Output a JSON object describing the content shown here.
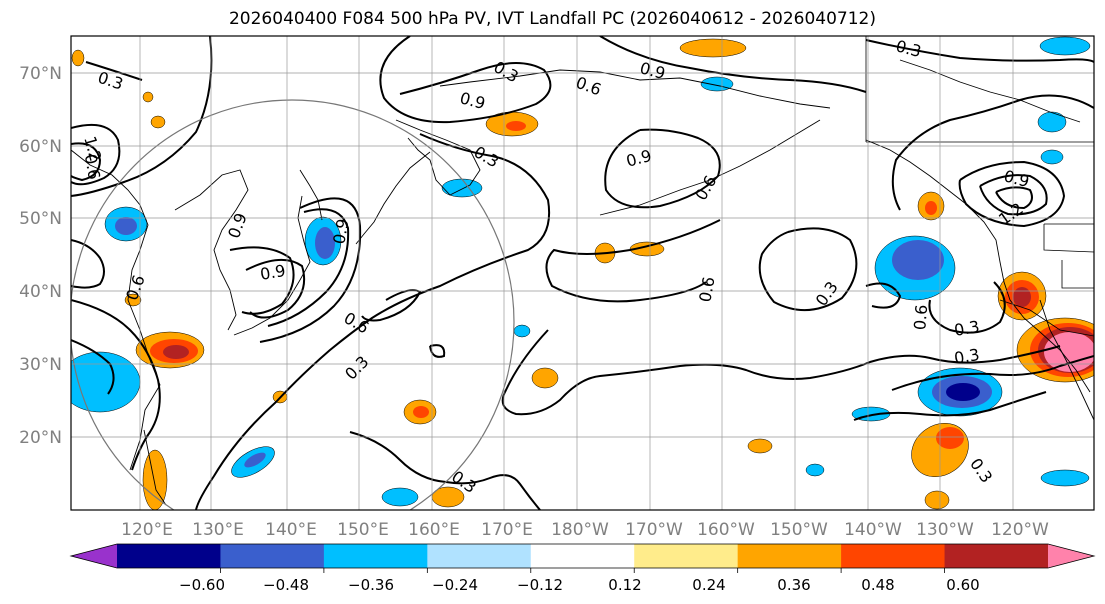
{
  "title": "2026040400 F084 500 hPa PV, IVT Landfall PC (2026040612 - 2026040712)",
  "lat_labels": [
    "70°N",
    "60°N",
    "50°N",
    "40°N",
    "30°N",
    "20°N"
  ],
  "lon_labels": [
    "120°E",
    "130°E",
    "140°E",
    "150°E",
    "160°E",
    "170°E",
    "180°W",
    "170°W",
    "160°W",
    "150°W",
    "140°W",
    "130°W",
    "120°W"
  ],
  "contour_labels": [
    "0.3",
    "0.9",
    "0.6",
    "0.9",
    "0.3",
    "0.9",
    "0.6",
    "0.3",
    "0.3",
    "0.9",
    "1.2",
    "0.6",
    "0.9",
    "0.6",
    "0.3",
    "0.6",
    "0.3",
    "0.3",
    "0.6",
    "0.3",
    "0.3",
    "0.9",
    "0.9",
    "1.2",
    "0.6",
    "0.3"
  ],
  "colorbar": {
    "colors": [
      "#9932cc",
      "#00008b",
      "#3a5fcd",
      "#00bfff",
      "#b0e2ff",
      "#ffffff",
      "#ffec8b",
      "#ffa500",
      "#ff4500",
      "#b22222",
      "#ff82ab"
    ],
    "ticks": [
      "−0.60",
      "−0.48",
      "−0.36",
      "−0.24",
      "−0.12",
      "0.12",
      "0.24",
      "0.36",
      "0.48",
      "0.60"
    ]
  }
}
